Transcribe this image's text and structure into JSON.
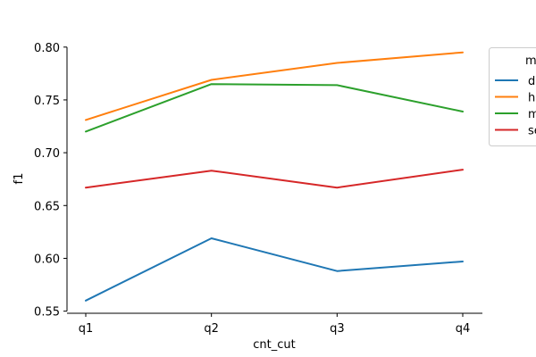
{
  "chart_data": {
    "type": "line",
    "title": "",
    "xlabel": "cnt_cut",
    "ylabel": "f1",
    "categories": [
      "q1",
      "q2",
      "q3",
      "q4"
    ],
    "ylim": [
      0.548,
      0.826
    ],
    "yticks": [
      0.55,
      0.6,
      0.65,
      0.7,
      0.75,
      0.8
    ],
    "ytick_labels": [
      "0.55",
      "0.60",
      "0.65",
      "0.70",
      "0.75",
      "0.80"
    ],
    "grid": false,
    "legend": {
      "title": "m",
      "placement": "right, partially clipped",
      "entries": [
        "d",
        "h",
        "m",
        "se"
      ]
    },
    "series": [
      {
        "name": "d",
        "color": "#1f77b4",
        "values": [
          0.56,
          0.619,
          0.588,
          0.597
        ]
      },
      {
        "name": "h",
        "color": "#ff7f0e",
        "values": [
          0.731,
          0.769,
          0.785,
          0.795
        ]
      },
      {
        "name": "m",
        "color": "#2ca02c",
        "values": [
          0.72,
          0.765,
          0.764,
          0.739
        ]
      },
      {
        "name": "se",
        "color": "#d62728",
        "values": [
          0.667,
          0.683,
          0.667,
          0.684
        ]
      }
    ]
  }
}
